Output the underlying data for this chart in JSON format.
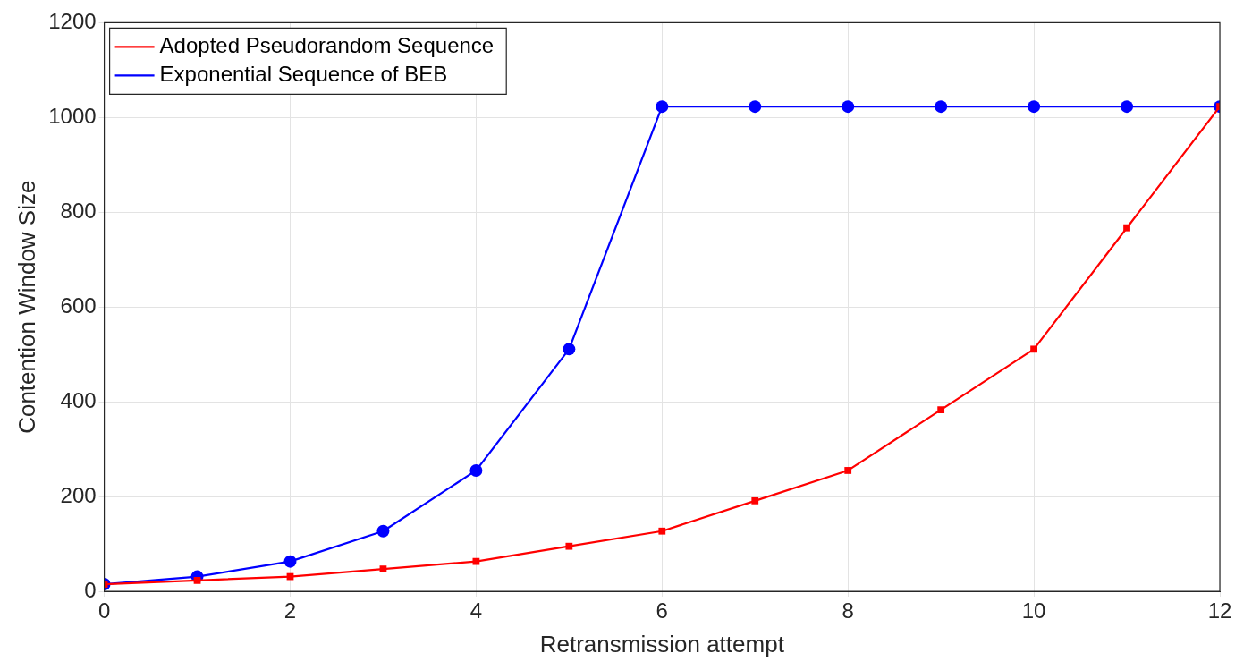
{
  "chart_data": {
    "type": "line",
    "xlabel": "Retransmission attempt",
    "ylabel": "Contention Window Size",
    "x": [
      0,
      1,
      2,
      3,
      4,
      5,
      6,
      7,
      8,
      9,
      10,
      11,
      12
    ],
    "series": [
      {
        "name": "Adopted Pseudorandom Sequence",
        "color": "#ff0000",
        "marker": "square",
        "values": [
          15,
          23,
          31,
          47,
          63,
          95,
          127,
          191,
          255,
          383,
          511,
          767,
          1023
        ]
      },
      {
        "name": "Exponential Sequence of BEB",
        "color": "#0000ff",
        "marker": "circle",
        "values": [
          15,
          31,
          63,
          127,
          255,
          511,
          1023,
          1023,
          1023,
          1023,
          1023,
          1023,
          1023
        ]
      }
    ],
    "xlim": [
      0,
      12
    ],
    "xticks": [
      0,
      2,
      4,
      6,
      8,
      10,
      12
    ],
    "ylim": [
      0,
      1200
    ],
    "yticks": [
      0,
      200,
      400,
      600,
      800,
      1000,
      1200
    ],
    "grid": true,
    "legend": "top left"
  }
}
